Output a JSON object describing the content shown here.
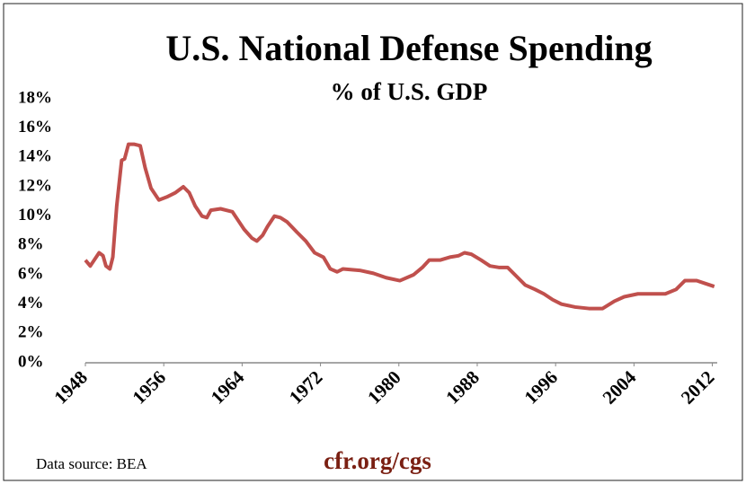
{
  "chart_data": {
    "type": "line",
    "title": "U.S. National Defense Spending",
    "subtitle": "% of U.S. GDP",
    "source": "Data source: BEA",
    "brand": "cfr.org/cgs",
    "x": [
      1948,
      1948.5,
      1949.4,
      1949.8,
      1950.1,
      1950.5,
      1950.8,
      1951.2,
      1951.7,
      1952.0,
      1952.4,
      1953.0,
      1953.6,
      1954.1,
      1954.7,
      1955.5,
      1956.3,
      1957.2,
      1958.0,
      1958.6,
      1959.2,
      1959.9,
      1960.4,
      1960.8,
      1961.8,
      1963.0,
      1963.6,
      1964.2,
      1965.0,
      1965.5,
      1966.1,
      1966.6,
      1967.3,
      1967.9,
      1968.6,
      1969.6,
      1970.5,
      1971.4,
      1972.3,
      1973.0,
      1973.7,
      1974.3,
      1976.0,
      1977.4,
      1978.7,
      1980.1,
      1981.5,
      1982.4,
      1983.1,
      1984.2,
      1985.2,
      1986.1,
      1986.7,
      1987.4,
      1988.4,
      1989.3,
      1990.2,
      1991.1,
      1992.0,
      1992.9,
      1993.9,
      1994.8,
      1995.7,
      1996.6,
      1998.0,
      1999.4,
      2000.8,
      2002.0,
      2003.0,
      2004.4,
      2005.8,
      2007.2,
      2008.3,
      2009.2,
      2010.4,
      2011.3,
      2012.2
    ],
    "series": [
      {
        "name": "Defense spending",
        "color": "#c0504d",
        "values": [
          7.0,
          6.6,
          7.5,
          7.3,
          6.6,
          6.4,
          7.2,
          10.7,
          13.8,
          13.9,
          14.9,
          14.9,
          14.8,
          13.3,
          11.9,
          11.1,
          11.3,
          11.6,
          12.0,
          11.6,
          10.7,
          10.0,
          9.9,
          10.4,
          10.5,
          10.3,
          9.7,
          9.1,
          8.5,
          8.3,
          8.7,
          9.3,
          10.0,
          9.9,
          9.6,
          8.9,
          8.3,
          7.5,
          7.2,
          6.4,
          6.2,
          6.4,
          6.3,
          6.1,
          5.8,
          5.6,
          6.0,
          6.5,
          7.0,
          7.0,
          7.2,
          7.3,
          7.5,
          7.4,
          7.0,
          6.6,
          6.5,
          6.5,
          5.9,
          5.3,
          5.0,
          4.7,
          4.3,
          4.0,
          3.8,
          3.7,
          3.7,
          4.2,
          4.5,
          4.7,
          4.7,
          4.7,
          5.0,
          5.6,
          5.6,
          5.4,
          5.2
        ]
      }
    ],
    "xlim": [
      1948,
      2012.5
    ],
    "xticks": [
      1948,
      1956,
      1964,
      1972,
      1980,
      1988,
      1996,
      2004,
      2012
    ],
    "ylim": [
      0,
      18
    ],
    "yticks": [
      {
        "value": 0,
        "label": "0%"
      },
      {
        "value": 2,
        "label": "2%"
      },
      {
        "value": 4,
        "label": "4%"
      },
      {
        "value": 6,
        "label": "6%"
      },
      {
        "value": 8,
        "label": "8%"
      },
      {
        "value": 10,
        "label": "10%"
      },
      {
        "value": 12,
        "label": "12%"
      },
      {
        "value": 14,
        "label": "14%"
      },
      {
        "value": 16,
        "label": "16%"
      },
      {
        "value": 18,
        "label": "18%"
      }
    ],
    "grid": false
  }
}
